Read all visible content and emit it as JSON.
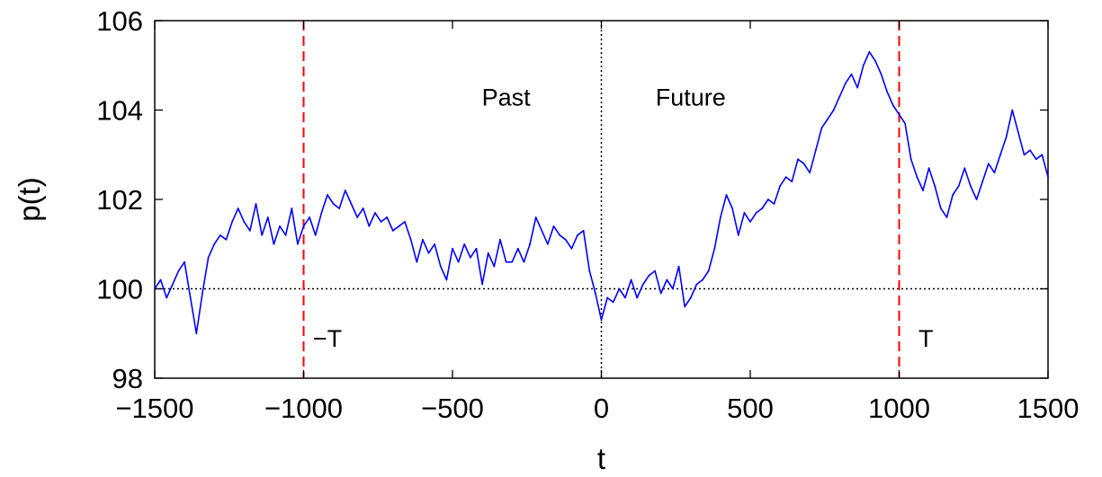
{
  "chart_data": {
    "type": "line",
    "title": "",
    "xlabel": "t",
    "ylabel": "p(t)",
    "xlim": [
      -1500,
      1500
    ],
    "ylim": [
      98,
      106
    ],
    "xticks": [
      -1500,
      -1000,
      -500,
      0,
      500,
      1000,
      1500
    ],
    "xtick_labels": [
      "−1500",
      "−1000",
      "−500",
      "0",
      "500",
      "1000",
      "1500"
    ],
    "yticks": [
      98,
      100,
      102,
      104,
      106
    ],
    "ytick_labels": [
      "98",
      "100",
      "102",
      "104",
      "106"
    ],
    "grid": false,
    "legend": "none",
    "series": [
      {
        "color": "#0000ff",
        "x": [
          -1500,
          -1480,
          -1460,
          -1440,
          -1420,
          -1400,
          -1380,
          -1360,
          -1340,
          -1320,
          -1300,
          -1280,
          -1260,
          -1240,
          -1220,
          -1200,
          -1180,
          -1160,
          -1140,
          -1120,
          -1100,
          -1080,
          -1060,
          -1040,
          -1020,
          -1000,
          -980,
          -960,
          -940,
          -920,
          -900,
          -880,
          -860,
          -840,
          -820,
          -800,
          -780,
          -760,
          -740,
          -720,
          -700,
          -680,
          -660,
          -640,
          -620,
          -600,
          -580,
          -560,
          -540,
          -520,
          -500,
          -480,
          -460,
          -440,
          -420,
          -400,
          -380,
          -360,
          -340,
          -320,
          -300,
          -280,
          -260,
          -240,
          -220,
          -200,
          -180,
          -160,
          -140,
          -120,
          -100,
          -80,
          -60,
          -40,
          -20,
          0,
          20,
          40,
          60,
          80,
          100,
          120,
          140,
          160,
          180,
          200,
          220,
          240,
          260,
          280,
          300,
          320,
          340,
          360,
          380,
          400,
          420,
          440,
          460,
          480,
          500,
          520,
          540,
          560,
          580,
          600,
          620,
          640,
          660,
          680,
          700,
          720,
          740,
          760,
          780,
          800,
          820,
          840,
          860,
          880,
          900,
          920,
          940,
          960,
          980,
          1000,
          1020,
          1040,
          1060,
          1080,
          1100,
          1120,
          1140,
          1160,
          1180,
          1200,
          1220,
          1240,
          1260,
          1280,
          1300,
          1320,
          1340,
          1360,
          1380,
          1400,
          1420,
          1440,
          1460,
          1480,
          1500
        ],
        "values": [
          100.0,
          100.2,
          99.8,
          100.1,
          100.4,
          100.6,
          99.8,
          99.0,
          99.9,
          100.7,
          101.0,
          101.2,
          101.1,
          101.5,
          101.8,
          101.5,
          101.3,
          101.9,
          101.2,
          101.6,
          101.0,
          101.4,
          101.2,
          101.8,
          101.0,
          101.4,
          101.6,
          101.2,
          101.7,
          102.1,
          101.9,
          101.8,
          102.2,
          101.9,
          101.6,
          101.8,
          101.4,
          101.7,
          101.5,
          101.6,
          101.3,
          101.4,
          101.5,
          101.1,
          100.6,
          101.1,
          100.8,
          101.0,
          100.5,
          100.2,
          100.9,
          100.6,
          101.0,
          100.7,
          100.9,
          100.1,
          100.8,
          100.5,
          101.1,
          100.6,
          100.6,
          100.9,
          100.6,
          101.0,
          101.6,
          101.3,
          101.0,
          101.4,
          101.2,
          101.1,
          100.9,
          101.2,
          101.3,
          100.4,
          99.9,
          99.3,
          99.8,
          99.7,
          100.0,
          99.8,
          100.2,
          99.8,
          100.1,
          100.3,
          100.4,
          99.9,
          100.2,
          100.0,
          100.5,
          99.6,
          99.8,
          100.1,
          100.2,
          100.4,
          100.9,
          101.6,
          102.1,
          101.8,
          101.2,
          101.7,
          101.5,
          101.7,
          101.8,
          102.0,
          101.9,
          102.3,
          102.5,
          102.4,
          102.9,
          102.8,
          102.6,
          103.1,
          103.6,
          103.8,
          104.0,
          104.3,
          104.6,
          104.8,
          104.5,
          105.0,
          105.3,
          105.1,
          104.8,
          104.4,
          104.1,
          103.9,
          103.7,
          102.9,
          102.5,
          102.2,
          102.7,
          102.3,
          101.8,
          101.6,
          102.1,
          102.3,
          102.7,
          102.3,
          102.0,
          102.4,
          102.8,
          102.6,
          103.0,
          103.4,
          104.0,
          103.5,
          103.0,
          103.1,
          102.9,
          103.0,
          102.5
        ]
      }
    ],
    "hlines": [
      {
        "y": 100,
        "style": "dotted",
        "color": "#000000"
      }
    ],
    "vlines": [
      {
        "x": -1000,
        "style": "dashed",
        "color": "#ff0000"
      },
      {
        "x": 0,
        "style": "dotted",
        "color": "#000000"
      },
      {
        "x": 1000,
        "style": "dashed",
        "color": "#ff0000"
      }
    ],
    "annotations": [
      {
        "text": "Past",
        "x": -320,
        "y": 104.1
      },
      {
        "text": "Future",
        "x": 300,
        "y": 104.1
      },
      {
        "text": "−T",
        "x": -920,
        "y": 98.7
      },
      {
        "text": "T",
        "x": 1090,
        "y": 98.7
      }
    ]
  }
}
